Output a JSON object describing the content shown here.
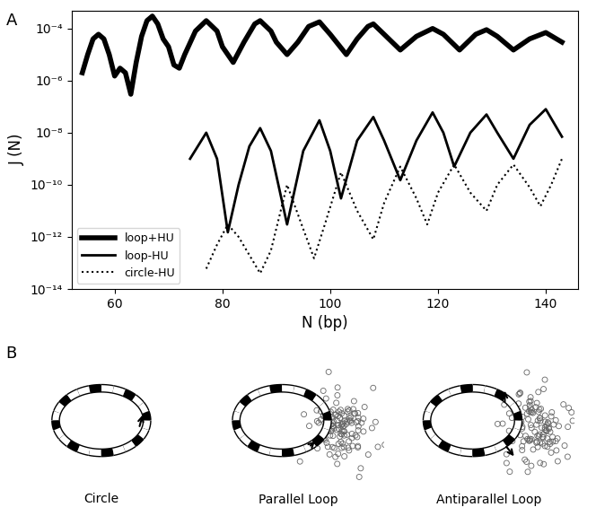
{
  "chart_data": {
    "type": "line",
    "x_label": "N (bp)",
    "y_label": "J (N)",
    "log": "y",
    "xlim": [
      52,
      146
    ],
    "xticks": [
      60,
      80,
      100,
      120,
      140
    ],
    "ylim": [
      1e-14,
      0.0005
    ],
    "yticks": [
      {
        "value": 1e-14,
        "label": "10⁻¹⁴"
      },
      {
        "value": 1e-12,
        "label": "10⁻¹²"
      },
      {
        "value": 1e-10,
        "label": "10⁻¹⁰"
      },
      {
        "value": 1e-08,
        "label": "10⁻⁸"
      },
      {
        "value": 1e-06,
        "label": "10⁻⁶"
      },
      {
        "value": 0.0001,
        "label": "10⁻⁴"
      }
    ],
    "legend": "lower left",
    "series": [
      {
        "name": "loop+HU",
        "color": "#000000",
        "line_style": "solid",
        "x": [
          54,
          55,
          56,
          57,
          58,
          59,
          60,
          61,
          62,
          63,
          64,
          65,
          66,
          67,
          68,
          69,
          70,
          71,
          72,
          73,
          75,
          77,
          79,
          80,
          82,
          84,
          86,
          87,
          89,
          90,
          92,
          94,
          96,
          98,
          100,
          103,
          105,
          107,
          108,
          110,
          113,
          116,
          119,
          121,
          124,
          127,
          129,
          131,
          134,
          137,
          140,
          143
        ],
        "values": [
          2e-06,
          1e-05,
          4e-05,
          6e-05,
          4e-05,
          1e-05,
          1.5e-06,
          3e-06,
          2e-06,
          3e-07,
          5e-06,
          5e-05,
          0.0002,
          0.0003,
          0.00015,
          4e-05,
          2e-05,
          4e-06,
          3e-06,
          1e-05,
          8e-05,
          0.0002,
          8e-05,
          2e-05,
          5e-06,
          3e-05,
          0.00015,
          0.0002,
          8e-05,
          3e-05,
          1e-05,
          3e-05,
          0.00012,
          0.00018,
          6e-05,
          1e-05,
          4e-05,
          0.00012,
          0.00015,
          6e-05,
          1.5e-05,
          5e-05,
          0.0001,
          6e-05,
          1.5e-05,
          6e-05,
          9e-05,
          5e-05,
          1.5e-05,
          4e-05,
          7e-05,
          3e-05
        ]
      },
      {
        "name": "loop-HU",
        "color": "#000000",
        "line_style": "solid",
        "x": [
          74,
          77,
          79,
          81,
          83,
          85,
          87,
          89,
          92,
          95,
          98,
          100,
          102,
          105,
          108,
          110,
          113,
          116,
          119,
          121,
          123,
          126,
          129,
          131,
          134,
          137,
          140,
          143
        ],
        "values": [
          1e-09,
          1e-08,
          1e-09,
          1.5e-12,
          1e-10,
          3e-09,
          1.5e-08,
          2e-09,
          3e-12,
          2e-09,
          3e-08,
          2e-09,
          3e-11,
          5e-09,
          4e-08,
          5e-09,
          1.5e-10,
          5e-09,
          6e-08,
          1e-08,
          5e-10,
          1e-08,
          5e-08,
          1e-08,
          1e-09,
          2e-08,
          8e-08,
          7e-09
        ]
      },
      {
        "name": "circle-HU",
        "color": "#000000",
        "line_style": "dotted",
        "x": [
          77,
          79,
          81,
          83,
          85,
          87,
          89,
          92,
          95,
          97,
          99,
          102,
          105,
          108,
          110,
          113,
          116,
          118,
          120,
          123,
          126,
          129,
          131,
          134,
          137,
          139,
          141,
          143
        ],
        "values": [
          6e-14,
          5e-13,
          3e-12,
          1e-12,
          2e-13,
          4e-14,
          3e-13,
          1e-10,
          2e-12,
          1.5e-13,
          3e-12,
          3e-10,
          1e-11,
          8e-13,
          2e-11,
          5e-10,
          3e-11,
          3e-12,
          5e-11,
          6e-10,
          5e-11,
          1e-11,
          1e-10,
          6e-10,
          8e-11,
          1.5e-11,
          1e-10,
          1e-09
        ]
      }
    ]
  },
  "figure": {
    "panel_labels": [
      "A",
      "B"
    ],
    "captions": [
      "Circle",
      "Parallel Loop",
      "Antiparallel Loop"
    ]
  }
}
